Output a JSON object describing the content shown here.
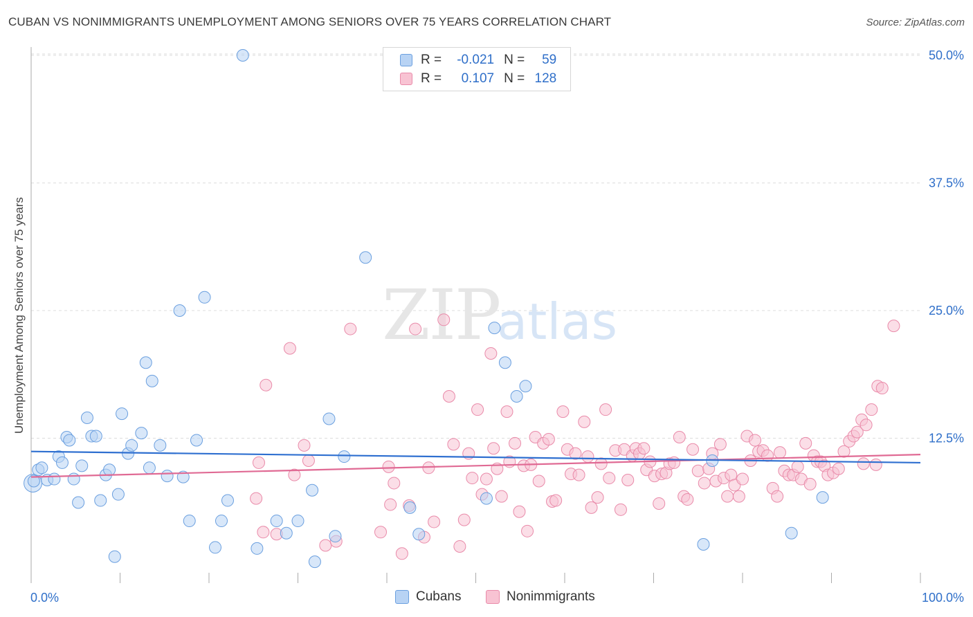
{
  "title": "CUBAN VS NONIMMIGRANTS UNEMPLOYMENT AMONG SENIORS OVER 75 YEARS CORRELATION CHART",
  "source": "Source: ZipAtlas.com",
  "watermark": {
    "zip": "ZIP",
    "atlas": "atlas"
  },
  "legend_top": {
    "rows": [
      {
        "r_label": "R =",
        "r_value": "-0.021",
        "n_label": "N =",
        "n_value": "59"
      },
      {
        "r_label": "R =",
        "r_value": "0.107",
        "n_label": "N =",
        "n_value": "128"
      }
    ]
  },
  "legend_bottom": {
    "cubans": "Cubans",
    "nonimmigrants": "Nonimmigrants"
  },
  "colors": {
    "cubans_fill": "#b8d3f4",
    "cubans_stroke": "#6a9fdf",
    "cubans_line": "#2e6fd0",
    "nonimm_fill": "#f8c3d3",
    "nonimm_stroke": "#e98aa9",
    "nonimm_line": "#e06a94",
    "tick_label": "#2f6fc9",
    "grid": "#dcdcdc"
  },
  "chart_data": {
    "type": "scatter",
    "title": "CUBAN VS NONIMMIGRANTS UNEMPLOYMENT AMONG SENIORS OVER 75 YEARS CORRELATION CHART",
    "xlabel": "",
    "ylabel": "Unemployment Among Seniors over 75 years",
    "xlim": [
      0,
      100
    ],
    "ylim": [
      0,
      50
    ],
    "x_tick_labels": [
      "0.0%",
      "100.0%"
    ],
    "y_ticks": [
      12.5,
      25.0,
      37.5,
      50.0
    ],
    "y_tick_labels": [
      "12.5%",
      "25.0%",
      "37.5%",
      "50.0%"
    ],
    "grid": true,
    "legend_position": "top-center",
    "series": [
      {
        "name": "Cubans",
        "r": -0.021,
        "n": 59,
        "trend": {
          "x": [
            0,
            100
          ],
          "y": [
            11.2,
            10.1
          ]
        },
        "points": [
          [
            0.3,
            8.3
          ],
          [
            0.8,
            9.4
          ],
          [
            1.2,
            9.6
          ],
          [
            1.8,
            8.4
          ],
          [
            2.6,
            8.5
          ],
          [
            3.1,
            10.7
          ],
          [
            3.5,
            10.1
          ],
          [
            4.0,
            12.6
          ],
          [
            4.3,
            12.3
          ],
          [
            4.8,
            8.5
          ],
          [
            5.3,
            6.2
          ],
          [
            5.7,
            9.8
          ],
          [
            6.3,
            14.5
          ],
          [
            6.8,
            12.7
          ],
          [
            7.3,
            12.7
          ],
          [
            7.8,
            6.4
          ],
          [
            8.4,
            8.9
          ],
          [
            8.8,
            9.4
          ],
          [
            9.4,
            0.9
          ],
          [
            9.8,
            7.0
          ],
          [
            10.2,
            14.9
          ],
          [
            10.9,
            11.0
          ],
          [
            11.3,
            11.8
          ],
          [
            12.4,
            13.0
          ],
          [
            12.9,
            19.9
          ],
          [
            13.3,
            9.6
          ],
          [
            13.6,
            18.1
          ],
          [
            14.5,
            11.8
          ],
          [
            15.3,
            8.8
          ],
          [
            16.7,
            25.0
          ],
          [
            17.1,
            8.7
          ],
          [
            17.8,
            4.4
          ],
          [
            18.6,
            12.3
          ],
          [
            19.5,
            26.3
          ],
          [
            20.7,
            1.8
          ],
          [
            21.4,
            4.4
          ],
          [
            22.1,
            6.4
          ],
          [
            23.8,
            50.0
          ],
          [
            25.4,
            1.7
          ],
          [
            27.6,
            4.4
          ],
          [
            28.7,
            3.2
          ],
          [
            30.0,
            4.4
          ],
          [
            31.6,
            7.4
          ],
          [
            31.9,
            0.4
          ],
          [
            33.5,
            14.4
          ],
          [
            34.2,
            2.9
          ],
          [
            35.2,
            10.7
          ],
          [
            37.6,
            30.2
          ],
          [
            42.6,
            5.7
          ],
          [
            43.6,
            3.1
          ],
          [
            51.2,
            6.6
          ],
          [
            52.1,
            23.3
          ],
          [
            53.3,
            19.9
          ],
          [
            54.6,
            16.6
          ],
          [
            55.6,
            17.6
          ],
          [
            76.6,
            10.3
          ],
          [
            75.6,
            2.1
          ],
          [
            85.5,
            3.2
          ],
          [
            89.0,
            6.7
          ]
        ]
      },
      {
        "name": "Nonimmigrants",
        "r": 0.107,
        "n": 128,
        "trend": {
          "x": [
            0,
            100
          ],
          "y": [
            8.7,
            10.9
          ]
        },
        "points": [
          [
            25.3,
            6.6
          ],
          [
            25.6,
            10.1
          ],
          [
            26.1,
            3.3
          ],
          [
            26.4,
            17.7
          ],
          [
            27.6,
            3.1
          ],
          [
            29.1,
            21.3
          ],
          [
            29.6,
            8.9
          ],
          [
            30.7,
            11.8
          ],
          [
            31.2,
            10.3
          ],
          [
            33.1,
            2.0
          ],
          [
            34.3,
            2.4
          ],
          [
            35.9,
            23.2
          ],
          [
            39.3,
            3.3
          ],
          [
            40.2,
            9.7
          ],
          [
            40.4,
            6.0
          ],
          [
            40.8,
            8.1
          ],
          [
            41.7,
            1.2
          ],
          [
            42.5,
            5.9
          ],
          [
            43.2,
            23.2
          ],
          [
            44.2,
            2.8
          ],
          [
            44.7,
            9.6
          ],
          [
            45.3,
            4.3
          ],
          [
            46.4,
            24.1
          ],
          [
            47.0,
            16.6
          ],
          [
            47.5,
            11.9
          ],
          [
            48.2,
            1.9
          ],
          [
            48.7,
            4.5
          ],
          [
            49.2,
            11.0
          ],
          [
            49.6,
            8.6
          ],
          [
            50.2,
            15.3
          ],
          [
            50.7,
            7.0
          ],
          [
            51.2,
            8.5
          ],
          [
            51.7,
            20.8
          ],
          [
            52.0,
            11.5
          ],
          [
            52.4,
            9.5
          ],
          [
            52.9,
            6.8
          ],
          [
            53.5,
            15.1
          ],
          [
            53.8,
            10.2
          ],
          [
            54.4,
            12.0
          ],
          [
            54.9,
            5.3
          ],
          [
            55.4,
            9.8
          ],
          [
            55.8,
            3.4
          ],
          [
            56.2,
            9.9
          ],
          [
            56.7,
            12.6
          ],
          [
            57.1,
            8.3
          ],
          [
            57.6,
            12.0
          ],
          [
            58.2,
            12.4
          ],
          [
            58.6,
            6.3
          ],
          [
            59.0,
            6.4
          ],
          [
            59.8,
            15.1
          ],
          [
            60.3,
            11.4
          ],
          [
            60.7,
            9.0
          ],
          [
            61.2,
            11.0
          ],
          [
            61.6,
            8.9
          ],
          [
            62.2,
            14.1
          ],
          [
            62.6,
            10.7
          ],
          [
            63.0,
            5.7
          ],
          [
            63.7,
            6.7
          ],
          [
            64.1,
            10.0
          ],
          [
            64.6,
            15.3
          ],
          [
            65.0,
            8.6
          ],
          [
            65.7,
            11.3
          ],
          [
            66.3,
            5.5
          ],
          [
            66.7,
            11.4
          ],
          [
            67.1,
            8.4
          ],
          [
            67.6,
            10.8
          ],
          [
            68.0,
            11.5
          ],
          [
            68.4,
            11.0
          ],
          [
            68.9,
            11.5
          ],
          [
            69.2,
            9.4
          ],
          [
            69.6,
            10.2
          ],
          [
            70.1,
            8.8
          ],
          [
            70.6,
            6.1
          ],
          [
            70.9,
            9.0
          ],
          [
            71.4,
            9.1
          ],
          [
            71.8,
            10.0
          ],
          [
            72.3,
            10.1
          ],
          [
            72.9,
            12.6
          ],
          [
            73.4,
            6.8
          ],
          [
            73.8,
            6.5
          ],
          [
            74.4,
            11.4
          ],
          [
            75.0,
            9.3
          ],
          [
            75.7,
            8.1
          ],
          [
            76.2,
            9.5
          ],
          [
            76.6,
            11.0
          ],
          [
            77.0,
            8.3
          ],
          [
            77.5,
            11.9
          ],
          [
            77.9,
            8.6
          ],
          [
            78.3,
            6.8
          ],
          [
            78.7,
            8.9
          ],
          [
            79.1,
            7.9
          ],
          [
            79.6,
            6.8
          ],
          [
            80.0,
            8.5
          ],
          [
            80.5,
            12.7
          ],
          [
            80.9,
            10.3
          ],
          [
            81.4,
            12.3
          ],
          [
            81.8,
            11.2
          ],
          [
            82.3,
            11.3
          ],
          [
            82.8,
            10.8
          ],
          [
            83.4,
            7.6
          ],
          [
            83.9,
            6.8
          ],
          [
            84.2,
            11.1
          ],
          [
            84.7,
            9.3
          ],
          [
            85.2,
            8.9
          ],
          [
            85.7,
            8.9
          ],
          [
            86.2,
            9.7
          ],
          [
            86.6,
            8.5
          ],
          [
            87.1,
            12.0
          ],
          [
            87.6,
            8.0
          ],
          [
            88.0,
            10.8
          ],
          [
            88.4,
            10.2
          ],
          [
            88.8,
            10.2
          ],
          [
            89.2,
            9.8
          ],
          [
            89.6,
            8.9
          ],
          [
            90.2,
            9.1
          ],
          [
            90.8,
            9.5
          ],
          [
            91.4,
            11.2
          ],
          [
            92.0,
            12.2
          ],
          [
            92.5,
            12.7
          ],
          [
            92.9,
            13.1
          ],
          [
            93.4,
            14.3
          ],
          [
            93.9,
            13.8
          ],
          [
            94.5,
            15.3
          ],
          [
            95.2,
            17.6
          ],
          [
            95.7,
            17.4
          ],
          [
            97.0,
            23.5
          ],
          [
            93.6,
            10.0
          ],
          [
            95.0,
            9.9
          ]
        ]
      }
    ]
  }
}
